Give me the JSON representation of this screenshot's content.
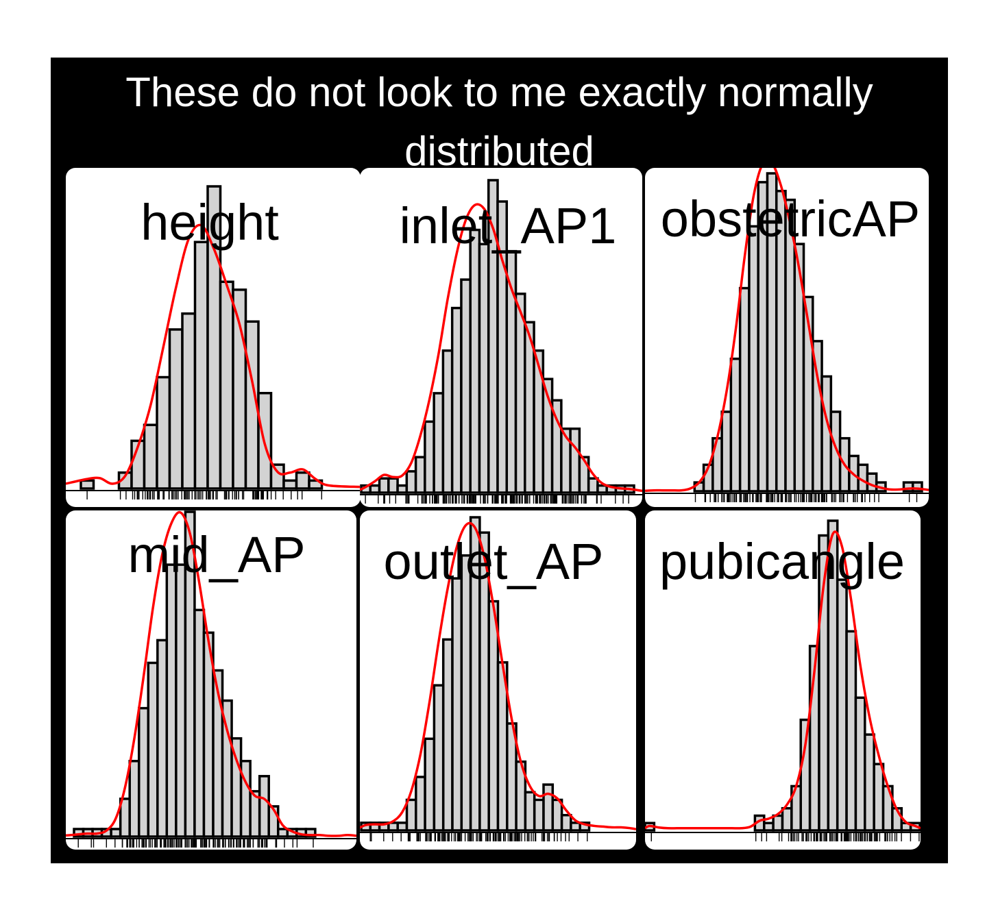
{
  "title": "These do not look to me exactly normally distributed",
  "colors": {
    "frame": "#000000",
    "title_text": "#ffffff",
    "panel_bg": "#ffffff",
    "bar_fill": "#d3d3d3",
    "bar_stroke": "#000000",
    "density_line": "#ff0000",
    "label_text": "#000000"
  },
  "chart_data": [
    {
      "type": "bar",
      "subtype": "histogram-with-density",
      "title": "height",
      "xlabel": "",
      "ylabel": "",
      "bins": 20,
      "values": [
        1,
        0,
        0,
        2,
        6,
        8,
        14,
        20,
        22,
        31,
        38,
        26,
        25,
        21,
        12,
        3,
        1,
        2,
        1,
        0
      ],
      "density": [
        1.2,
        1.3,
        0.6,
        1.6,
        5.3,
        10.5,
        17.8,
        25.3,
        31.4,
        33.1,
        30.1,
        25.6,
        20.7,
        13.5,
        5.6,
        2.1,
        2,
        2.4,
        1.2,
        0.4
      ],
      "rug": true,
      "grid": false,
      "legend": "none"
    },
    {
      "type": "bar",
      "subtype": "histogram-with-density",
      "title": "inlet_AP1",
      "xlabel": "",
      "ylabel": "",
      "bins": 30,
      "values": [
        1,
        1,
        2,
        2,
        1,
        3,
        5,
        10,
        14,
        20,
        26,
        30,
        37,
        35,
        44,
        41,
        34,
        28,
        24,
        20,
        16,
        13,
        9,
        9,
        5,
        2,
        1,
        1,
        1,
        1
      ],
      "density": [
        0.8,
        1.6,
        2.5,
        2.2,
        2.4,
        4.2,
        8,
        13.1,
        19.5,
        27.2,
        33.7,
        38.4,
        40.5,
        40,
        37.2,
        32.8,
        28.8,
        25.5,
        22.1,
        17.9,
        13.6,
        10.3,
        7.9,
        6.4,
        4.6,
        2.6,
        1.3,
        0.8,
        0.6,
        0.5
      ],
      "rug": true,
      "grid": false,
      "legend": "none"
    },
    {
      "type": "bar",
      "subtype": "histogram-with-density",
      "title": "obstetricAP",
      "xlabel": "",
      "ylabel": "",
      "bins": 30,
      "values": [
        0,
        0,
        0,
        0,
        0,
        1,
        3,
        6,
        9,
        15,
        23,
        30,
        35,
        36,
        34,
        33,
        28,
        22,
        17,
        13,
        9,
        6,
        4,
        3,
        2,
        1,
        0,
        0,
        1,
        1
      ],
      "density": [
        0.1,
        0.1,
        0.1,
        0.1,
        0.3,
        1,
        2.7,
        6.1,
        11.2,
        18.1,
        26.5,
        33.5,
        37.1,
        37.2,
        34.6,
        30.4,
        25.2,
        19.1,
        13,
        8.2,
        5,
        3,
        1.9,
        1.2,
        0.7,
        0.4,
        0.2,
        0.2,
        0.3,
        0.3
      ],
      "rug": true,
      "grid": false,
      "legend": "none"
    },
    {
      "type": "bar",
      "subtype": "histogram-with-density",
      "title": "mid_AP",
      "xlabel": "",
      "ylabel": "",
      "bins": 30,
      "values": [
        1,
        1,
        1,
        1,
        1,
        5,
        10,
        17,
        23,
        26,
        36,
        36,
        43,
        30,
        27,
        22,
        18,
        13,
        10,
        6,
        8,
        4,
        1,
        1,
        1,
        1,
        0,
        0,
        0,
        0
      ],
      "density": [
        0.3,
        0.4,
        0.4,
        0.8,
        2.4,
        6.5,
        13,
        21.2,
        30.2,
        37.3,
        41.5,
        42.9,
        40.1,
        33.6,
        25.9,
        19.2,
        14.1,
        10.2,
        7.2,
        5.4,
        5,
        3.6,
        1.5,
        0.7,
        0.3,
        0.2,
        0.2,
        0.1,
        0.1,
        0.2
      ],
      "rug": true,
      "grid": false,
      "legend": "none"
    },
    {
      "type": "bar",
      "subtype": "histogram-with-density",
      "title": "outlet_AP",
      "xlabel": "",
      "ylabel": "",
      "bins": 30,
      "values": [
        1,
        1,
        1,
        1,
        1,
        4,
        7,
        12,
        19,
        25,
        33,
        36,
        41,
        39,
        30,
        22,
        14,
        9,
        5,
        4,
        6,
        4,
        2,
        1,
        1,
        0,
        0,
        0,
        0,
        0
      ],
      "density": [
        0.7,
        0.8,
        0.8,
        1.2,
        2.4,
        5.2,
        10,
        16.9,
        24.8,
        31.8,
        37.2,
        40,
        39.6,
        35.8,
        29.4,
        21.8,
        14.6,
        9,
        5.8,
        4.5,
        4.8,
        4.2,
        2.6,
        1.3,
        0.8,
        0.6,
        0.5,
        0.4,
        0.4,
        0.3
      ],
      "rug": true,
      "grid": false,
      "legend": "none"
    },
    {
      "type": "bar",
      "subtype": "histogram-with-density",
      "title": "pubicangle",
      "xlabel": "",
      "ylabel": "",
      "bins": 30,
      "values": [
        1,
        0,
        0,
        0,
        0,
        0,
        0,
        0,
        0,
        0,
        0,
        0,
        2,
        1,
        2,
        3,
        6,
        15,
        25,
        40,
        42,
        34,
        27,
        18,
        13,
        9,
        6,
        3,
        1,
        1
      ],
      "density": [
        0.6,
        0.4,
        0.3,
        0.3,
        0.3,
        0.3,
        0.3,
        0.3,
        0.3,
        0.3,
        0.3,
        0.5,
        1.3,
        1.6,
        2.2,
        3.5,
        6,
        11.6,
        21.7,
        33.3,
        40.2,
        38.5,
        31.2,
        22.4,
        15.4,
        10.2,
        6,
        2.8,
        1.1,
        0.6
      ],
      "rug": true,
      "grid": false,
      "legend": "none"
    }
  ]
}
